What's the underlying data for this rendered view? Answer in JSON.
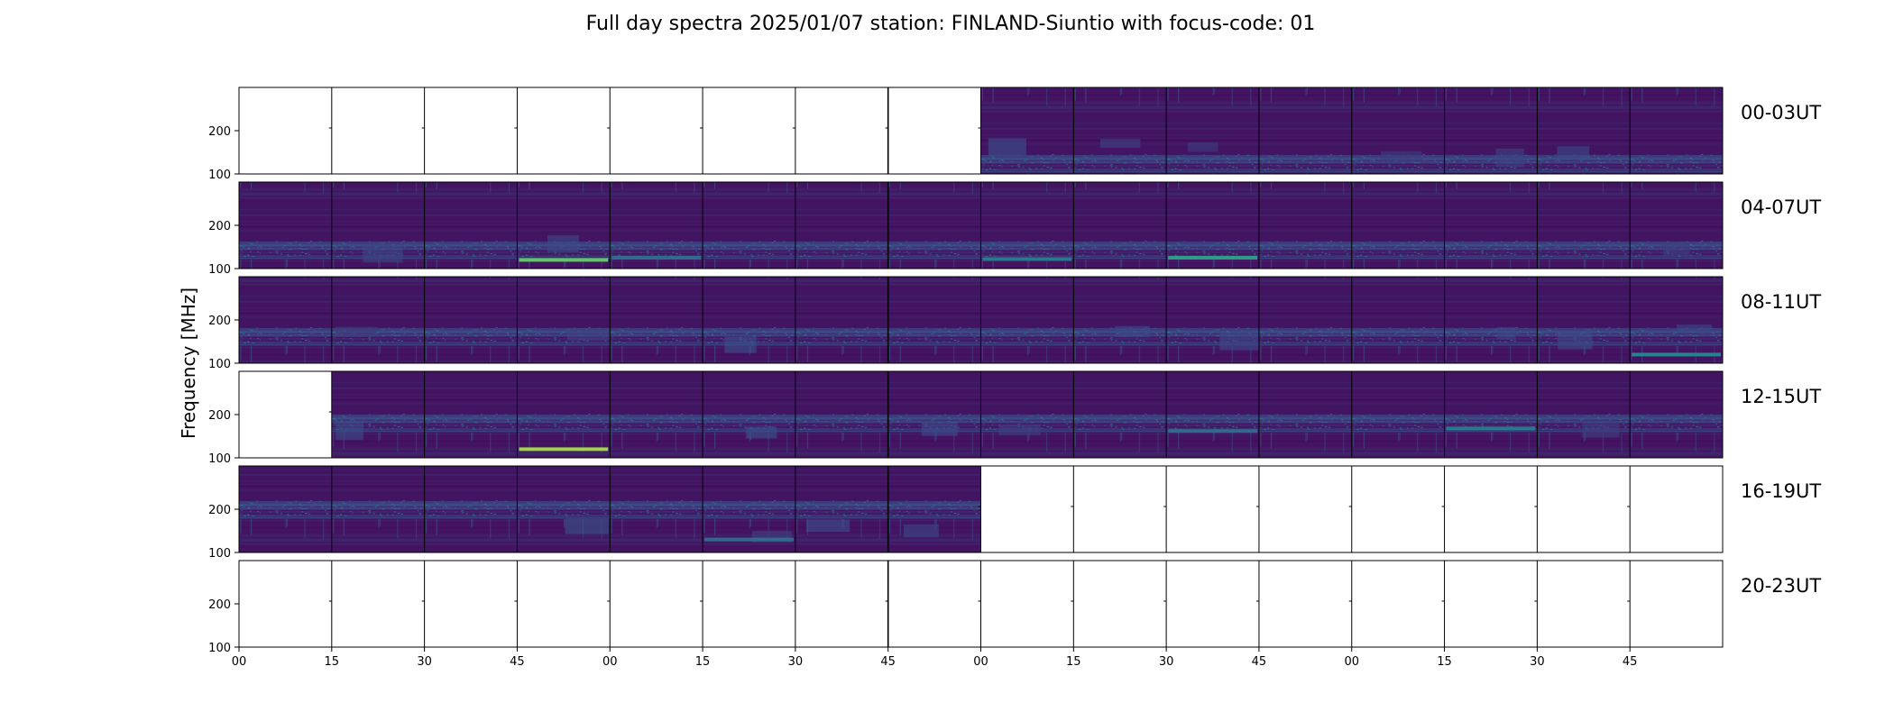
{
  "chart_data": {
    "type": "heatmap",
    "title": "Full day spectra 2025/01/07 station: FINLAND-Siuntio with focus-code: 01",
    "ylabel": "Frequency [MHz]",
    "xlabel": "",
    "ylim": [
      100,
      300
    ],
    "y_ticks": [
      "100",
      "200"
    ],
    "x_ticks": [
      "00",
      "15",
      "30",
      "45",
      "00",
      "15",
      "30",
      "45",
      "00",
      "15",
      "30",
      "45",
      "00",
      "15",
      "30",
      "45"
    ],
    "colormap": [
      "#440154",
      "#3b528b",
      "#21918c",
      "#5ec962",
      "#fde725"
    ],
    "panels_per_row": 16,
    "minutes_per_panel": 15,
    "grid": false,
    "rows": [
      {
        "label": "00-03UT",
        "has_data": [
          false,
          false,
          false,
          false,
          false,
          false,
          false,
          false,
          true,
          true,
          true,
          true,
          true,
          true,
          true,
          true
        ]
      },
      {
        "label": "04-07UT",
        "has_data": [
          true,
          true,
          true,
          true,
          true,
          true,
          true,
          true,
          true,
          true,
          true,
          true,
          true,
          true,
          true,
          true
        ]
      },
      {
        "label": "08-11UT",
        "has_data": [
          true,
          true,
          true,
          true,
          true,
          true,
          true,
          true,
          true,
          true,
          true,
          true,
          true,
          true,
          true,
          true
        ]
      },
      {
        "label": "12-15UT",
        "has_data": [
          false,
          true,
          true,
          true,
          true,
          true,
          true,
          true,
          true,
          true,
          true,
          true,
          true,
          true,
          true,
          true
        ]
      },
      {
        "label": "16-19UT",
        "has_data": [
          true,
          true,
          true,
          true,
          true,
          true,
          true,
          true,
          false,
          false,
          false,
          false,
          false,
          false,
          false,
          false
        ]
      },
      {
        "label": "20-23UT",
        "has_data": [
          false,
          false,
          false,
          false,
          false,
          false,
          false,
          false,
          false,
          false,
          false,
          false,
          false,
          false,
          false,
          false
        ]
      }
    ],
    "bright_bands": [
      {
        "row": 1,
        "panel": 3,
        "freq": 120,
        "level": 0.75
      },
      {
        "row": 1,
        "panel": 4,
        "freq": 125,
        "level": 0.35
      },
      {
        "row": 1,
        "panel": 8,
        "freq": 122,
        "level": 0.4
      },
      {
        "row": 1,
        "panel": 10,
        "freq": 125,
        "level": 0.55
      },
      {
        "row": 3,
        "panel": 3,
        "freq": 120,
        "level": 0.85
      },
      {
        "row": 2,
        "panel": 15,
        "freq": 120,
        "level": 0.45
      },
      {
        "row": 3,
        "panel": 10,
        "freq": 162,
        "level": 0.35
      },
      {
        "row": 3,
        "panel": 13,
        "freq": 168,
        "level": 0.4
      },
      {
        "row": 4,
        "panel": 5,
        "freq": 130,
        "level": 0.35
      }
    ]
  }
}
